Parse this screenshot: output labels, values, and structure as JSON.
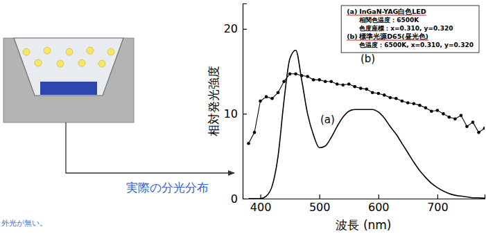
{
  "chart_data": {
    "type": "line",
    "xlabel": "波長 (nm)",
    "ylabel": "相対発光強度",
    "x": [
      380,
      390,
      400,
      410,
      420,
      430,
      440,
      450,
      460,
      470,
      480,
      490,
      500,
      510,
      520,
      530,
      540,
      550,
      560,
      570,
      580,
      590,
      600,
      610,
      620,
      630,
      640,
      650,
      660,
      670,
      680,
      690,
      700,
      710,
      720,
      730,
      740,
      750,
      760,
      770,
      780
    ],
    "xlim": [
      370,
      780
    ],
    "xticks": [
      400,
      500,
      600,
      700
    ],
    "ylim": [
      0,
      23
    ],
    "yticks": [
      0,
      10,
      20
    ],
    "grid": false,
    "legend": "upper right",
    "series": [
      {
        "name": "InGaN-YAG白色LED",
        "label": "(a)",
        "details": [
          "相関色温度：6500K",
          "色度座標：x=0.310, y=0.320"
        ],
        "color": "#000000",
        "marker": "none",
        "line_style": "solid",
        "values": [
          0,
          0,
          0,
          0.3,
          1.5,
          5,
          11.5,
          16.5,
          17.5,
          14,
          10,
          7.5,
          6.0,
          6.2,
          7.2,
          8.5,
          9.6,
          10.3,
          10.5,
          10.5,
          10.5,
          10.5,
          10.2,
          9.5,
          8.5,
          7.6,
          6.5,
          5.4,
          4.3,
          3.3,
          2.5,
          1.8,
          1.3,
          0.9,
          0.6,
          0.4,
          0.3,
          0.2,
          0.1,
          0.1,
          0.05
        ]
      },
      {
        "name": "標準光源D65(昼光色)",
        "label": "(b)",
        "details": [
          "色温度：6500K, x=0.310, y=0.320"
        ],
        "color": "#000000",
        "marker": "circle",
        "line_style": "solid",
        "values": [
          6.5,
          7.8,
          11.5,
          12.0,
          11.8,
          12.5,
          13.8,
          14.7,
          14.7,
          14.5,
          14.4,
          14.0,
          14.0,
          13.8,
          13.8,
          13.5,
          13.4,
          13.5,
          13.2,
          13.0,
          12.9,
          12.5,
          12.4,
          12.2,
          11.9,
          11.8,
          11.5,
          11.3,
          11.2,
          11.0,
          10.7,
          10.3,
          10.4,
          10.0,
          9.6,
          9.4,
          9.8,
          8.5,
          9.0,
          7.8,
          8.3
        ]
      }
    ],
    "annotations": [
      "実際の分光分布",
      "外光が無い。"
    ]
  }
}
